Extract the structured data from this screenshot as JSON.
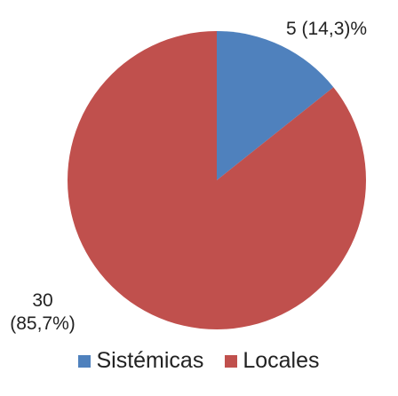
{
  "chart_data": {
    "type": "pie",
    "categories": [
      "Sistémicas",
      "Locales"
    ],
    "values": [
      5,
      30
    ],
    "value_labels": [
      "5 (14,3)%",
      "30 (85,7%)"
    ],
    "colors": [
      "#4f81bd",
      "#c0504d"
    ],
    "legend": "bottom"
  }
}
